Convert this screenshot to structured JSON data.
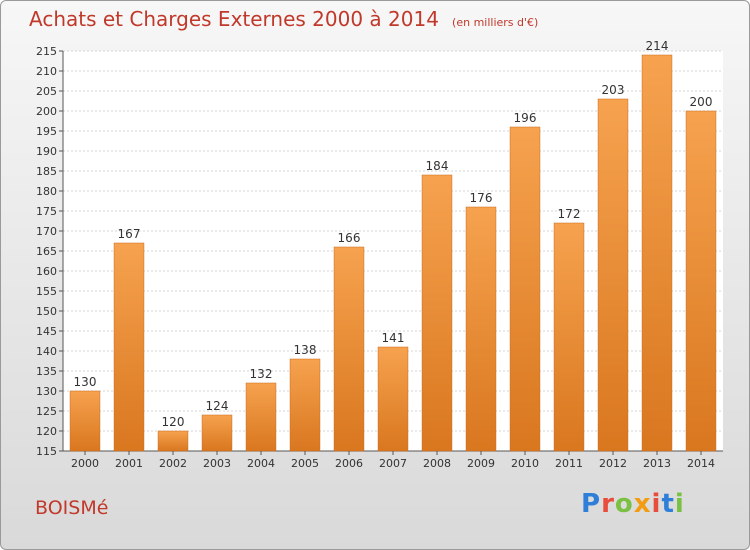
{
  "header": {
    "title": "Achats et Charges Externes 2000 à 2014",
    "subtitle": "(en milliers d'€)"
  },
  "footer": {
    "commune": "BOISMé",
    "brand": "Proxiti"
  },
  "colors": {
    "title": "#c0392b",
    "bar_light": "#f6a24f",
    "bar_dark": "#d9771f"
  },
  "chart_data": {
    "type": "bar",
    "categories": [
      "2000",
      "2001",
      "2002",
      "2003",
      "2004",
      "2005",
      "2006",
      "2007",
      "2008",
      "2009",
      "2010",
      "2011",
      "2012",
      "2013",
      "2014"
    ],
    "values": [
      130,
      167,
      120,
      124,
      132,
      138,
      166,
      141,
      184,
      176,
      196,
      172,
      203,
      214,
      200
    ],
    "title": "Achats et Charges Externes 2000 à 2014",
    "subtitle": "(en milliers d'€)",
    "xlabel": "",
    "ylabel": "",
    "ylim": [
      115,
      215
    ],
    "ytick_step": 5,
    "grid": true
  }
}
